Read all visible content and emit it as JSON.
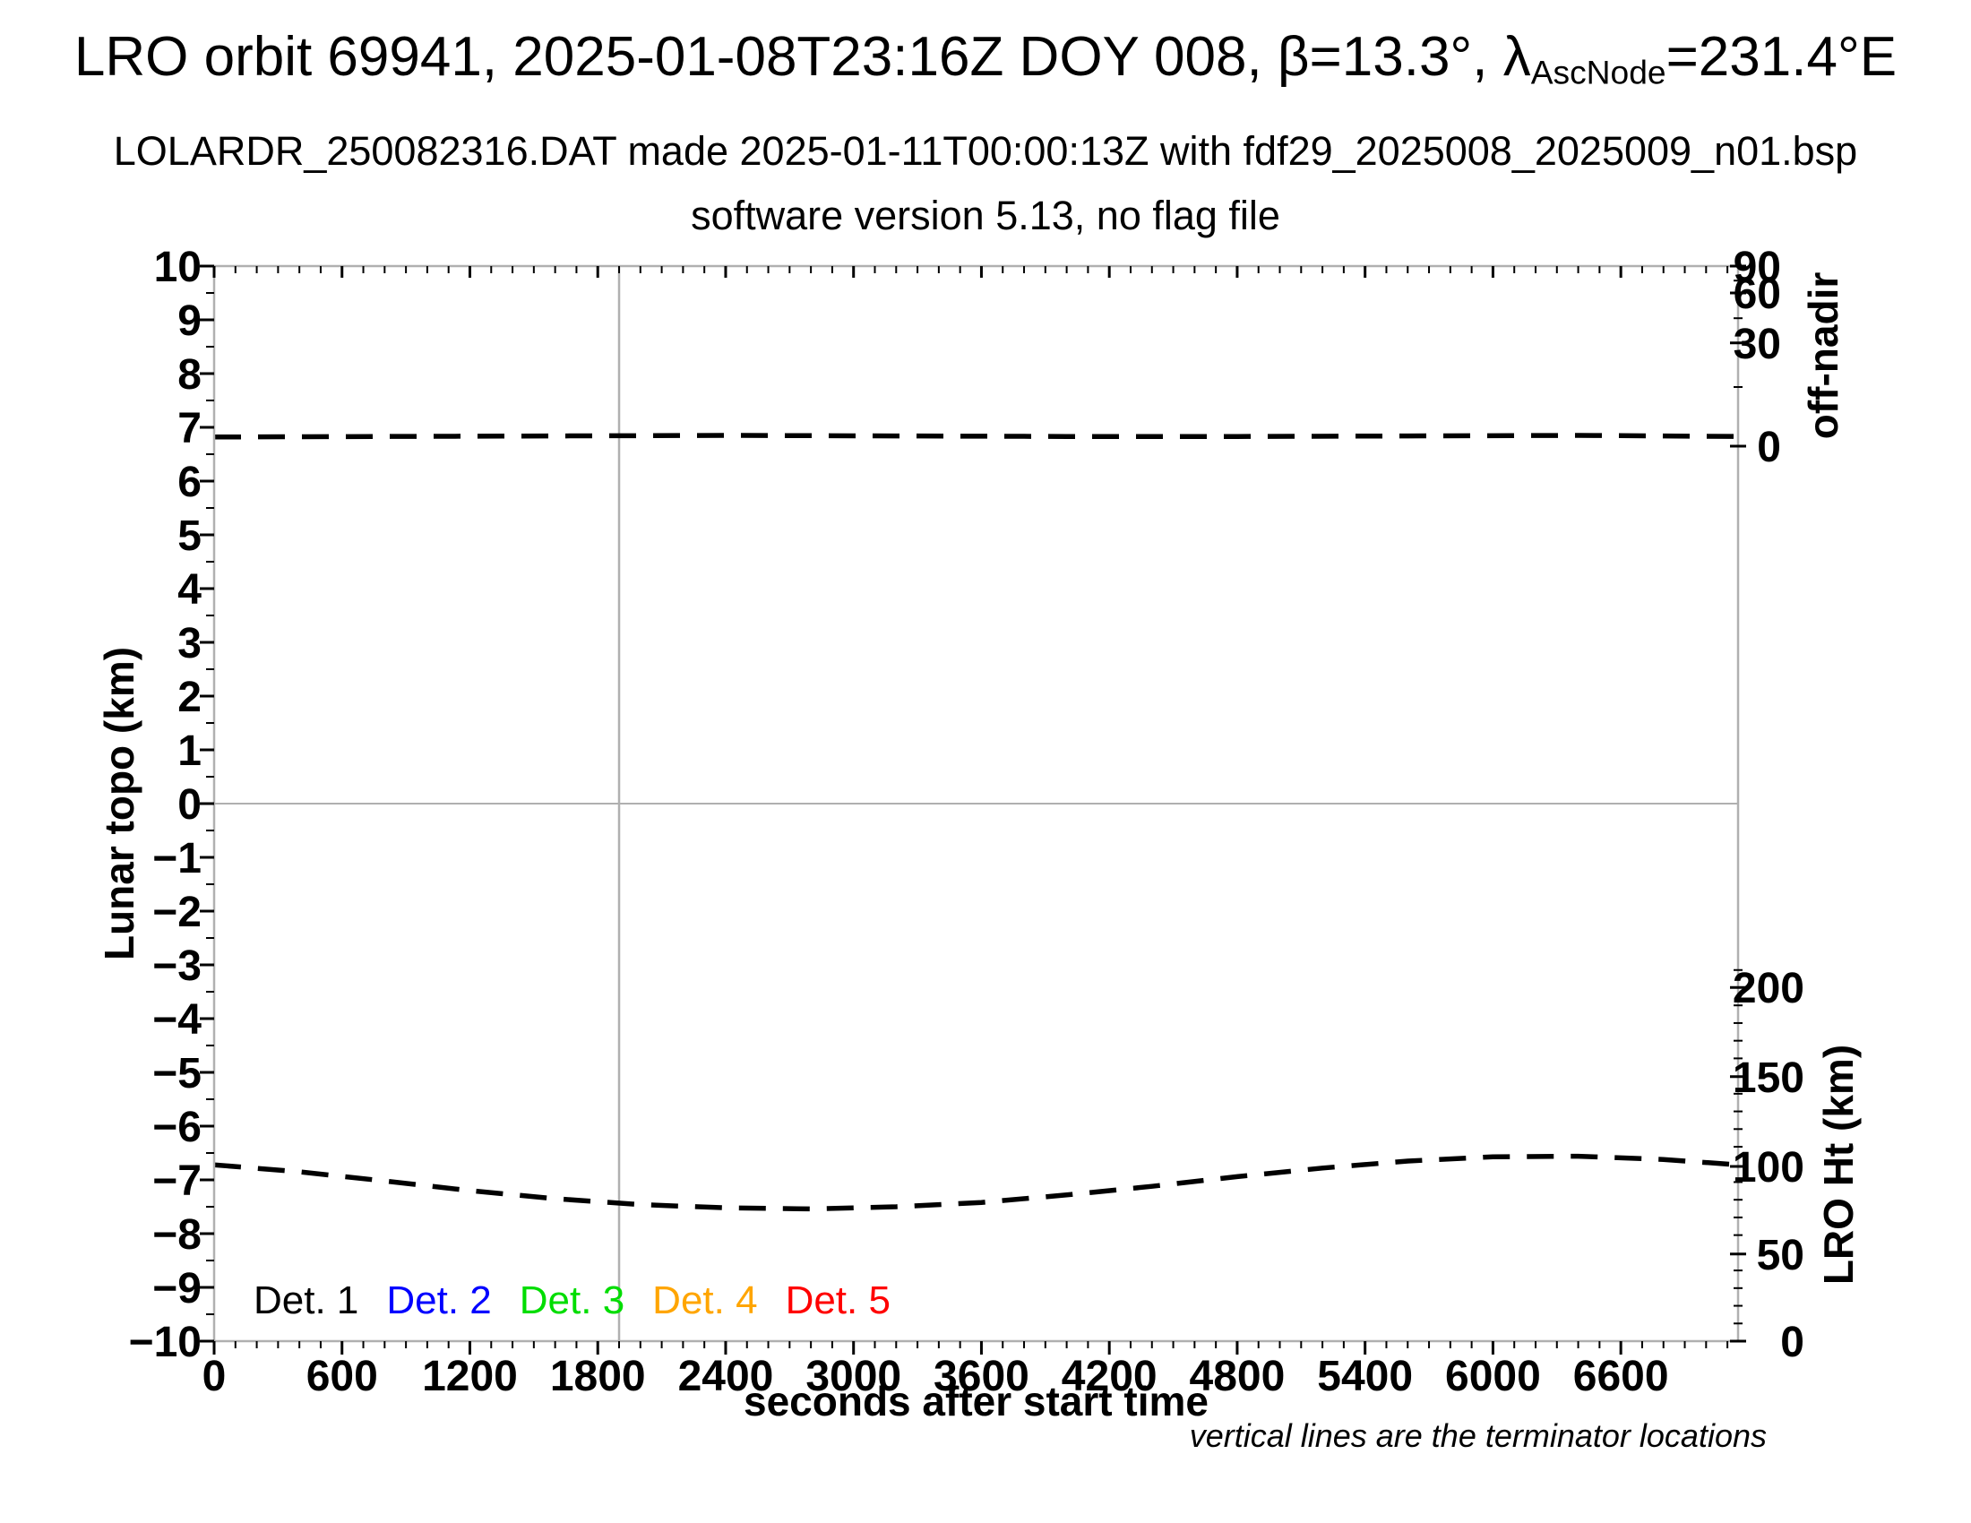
{
  "header": {
    "title_prefix": "LRO orbit 69941, 2025-01-08T23:16Z DOY 008, β=13.3°, ",
    "lambda_symbol": "λ",
    "lambda_subscript": "AscNode",
    "title_suffix": "=231.4°E",
    "subtitle_line1": "LOLARDR_250082316.DAT made 2025-01-11T00:00:13Z with fdf29_2025008_2025009_n01.bsp",
    "subtitle_line2": "software version 5.13, no flag file"
  },
  "chart_data": {
    "type": "line",
    "title": "LRO orbit 69941, 2025-01-08T23:16Z DOY 008, β=13.3°, λAscNode=231.4°E",
    "x_axis": {
      "label": "seconds after start time",
      "range": [
        0,
        7150
      ],
      "major_ticks": [
        0,
        600,
        1200,
        1800,
        2400,
        3000,
        3600,
        4200,
        4800,
        5400,
        6000,
        6600
      ],
      "minor_step": 100
    },
    "y_left": {
      "label": "Lunar topo (km)",
      "range": [
        -10,
        10
      ],
      "major_step": 1,
      "minor_step": 0.5
    },
    "y_right_top": {
      "label": "off-nadir",
      "units": "degrees",
      "major_ticks": [
        {
          "deg": 90,
          "topo": 10.0
        },
        {
          "deg": 60,
          "topo": 9.5
        },
        {
          "deg": 30,
          "topo": 8.57
        },
        {
          "deg": 0,
          "topo": 6.65
        }
      ],
      "minor_ticks": [
        {
          "deg": 75,
          "topo": 9.73
        },
        {
          "deg": 45,
          "topo": 9.03
        },
        {
          "deg": 15,
          "topo": 7.75
        }
      ]
    },
    "y_right_bottom": {
      "label": "LRO Ht (km)",
      "major_ticks": [
        {
          "km": 200,
          "topo": -3.42
        },
        {
          "km": 150,
          "topo": -5.08
        },
        {
          "km": 100,
          "topo": -6.75
        },
        {
          "km": 50,
          "topo": -8.38
        },
        {
          "km": 0,
          "topo": -10.0
        }
      ],
      "minor_step_km": 10,
      "km_range": [
        0,
        210
      ],
      "topo_at_0km": -10.0,
      "topo_per_km": 0.032876
    },
    "terminator_times_s": [
      1900
    ],
    "series": [
      {
        "name": "off-nadir angle",
        "reads_on": "y_right_top",
        "approx_value_deg": 1,
        "line_style": "dashed",
        "color": "#000000",
        "points": [
          [
            0,
            6.82
          ],
          [
            800,
            6.83
          ],
          [
            1600,
            6.84
          ],
          [
            2400,
            6.85
          ],
          [
            3200,
            6.84
          ],
          [
            4000,
            6.83
          ],
          [
            4800,
            6.83
          ],
          [
            5600,
            6.84
          ],
          [
            6400,
            6.85
          ],
          [
            7150,
            6.83
          ]
        ]
      },
      {
        "name": "LRO height",
        "reads_on": "y_right_bottom",
        "line_style": "dashed",
        "color": "#000000",
        "points": [
          [
            0,
            -6.72
          ],
          [
            400,
            -6.85
          ],
          [
            800,
            -7.02
          ],
          [
            1200,
            -7.2
          ],
          [
            1600,
            -7.35
          ],
          [
            2000,
            -7.46
          ],
          [
            2400,
            -7.52
          ],
          [
            2800,
            -7.54
          ],
          [
            3200,
            -7.5
          ],
          [
            3600,
            -7.42
          ],
          [
            4000,
            -7.28
          ],
          [
            4400,
            -7.12
          ],
          [
            4800,
            -6.94
          ],
          [
            5200,
            -6.78
          ],
          [
            5600,
            -6.65
          ],
          [
            6000,
            -6.57
          ],
          [
            6400,
            -6.56
          ],
          [
            6800,
            -6.62
          ],
          [
            7150,
            -6.72
          ]
        ],
        "points_ht_km": [
          [
            0,
            100
          ],
          [
            400,
            96
          ],
          [
            800,
            91
          ],
          [
            1200,
            85
          ],
          [
            1600,
            81
          ],
          [
            2000,
            77
          ],
          [
            2400,
            75
          ],
          [
            2800,
            75
          ],
          [
            3200,
            76
          ],
          [
            3600,
            79
          ],
          [
            4000,
            83
          ],
          [
            4400,
            88
          ],
          [
            4800,
            93
          ],
          [
            5200,
            98
          ],
          [
            5600,
            102
          ],
          [
            6000,
            104
          ],
          [
            6400,
            105
          ],
          [
            6800,
            103
          ],
          [
            7150,
            100
          ]
        ]
      }
    ],
    "legend": {
      "items": [
        {
          "label": "Det. 1",
          "color": "#000000"
        },
        {
          "label": "Det. 2",
          "color": "#0000ff"
        },
        {
          "label": "Det. 3",
          "color": "#00dd00"
        },
        {
          "label": "Det. 4",
          "color": "#ffa500"
        },
        {
          "label": "Det. 5",
          "color": "#ff0000"
        }
      ]
    },
    "footnote": "vertical lines are the terminator locations",
    "frame_color": "#b0b0b0",
    "grid": {
      "zero_line": true
    }
  }
}
